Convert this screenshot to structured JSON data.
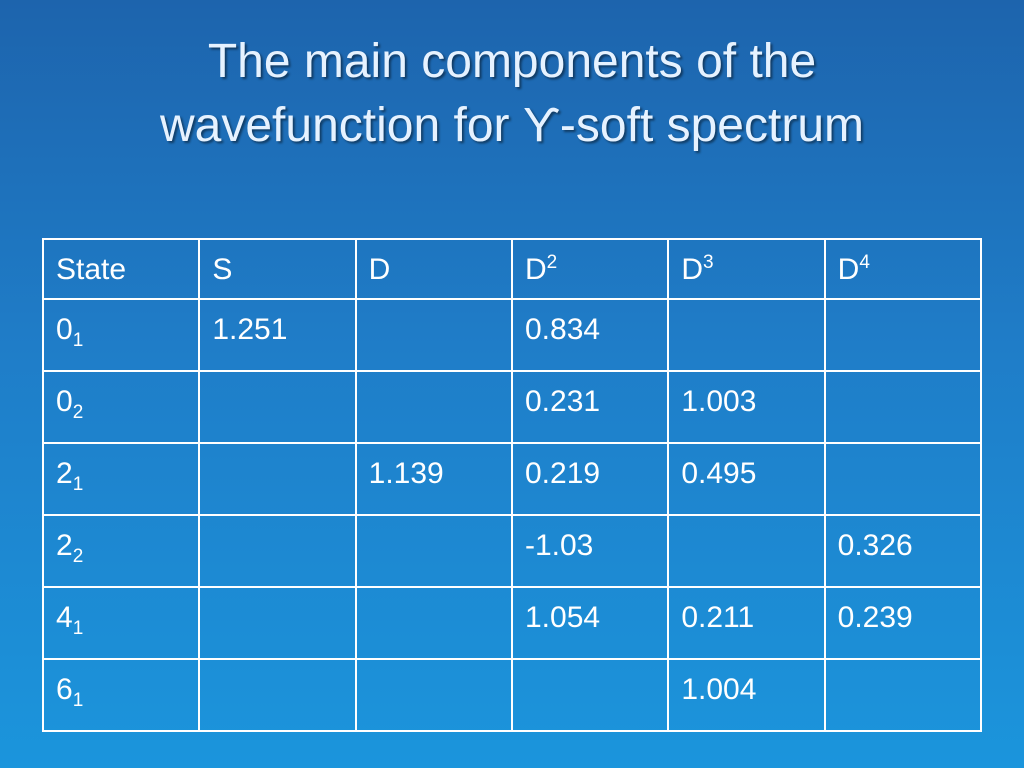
{
  "title": [
    "The main components of the",
    "wavefunction for ϒ-soft spectrum"
  ],
  "table": {
    "header": [
      "State",
      "S",
      "D",
      {
        "base": "D",
        "sup": "2"
      },
      {
        "base": "D",
        "sup": "3"
      },
      {
        "base": "D",
        "sup": "4"
      }
    ],
    "rows": [
      [
        {
          "base": "0",
          "sub": "1"
        },
        "1.251",
        null,
        "0.834",
        null,
        null
      ],
      [
        {
          "base": "0",
          "sub": "2"
        },
        null,
        null,
        "0.231",
        "1.003",
        null
      ],
      [
        {
          "base": "2",
          "sub": "1"
        },
        null,
        "1.139",
        "0.219",
        "0.495",
        null
      ],
      [
        {
          "base": "2",
          "sub": "2"
        },
        null,
        null,
        "-1.03",
        null,
        "0.326"
      ],
      [
        {
          "base": "4",
          "sub": "1"
        },
        null,
        null,
        "1.054",
        "0.211",
        "0.239"
      ],
      [
        {
          "base": "6",
          "sub": "1"
        },
        null,
        null,
        null,
        "1.004",
        null
      ]
    ]
  }
}
